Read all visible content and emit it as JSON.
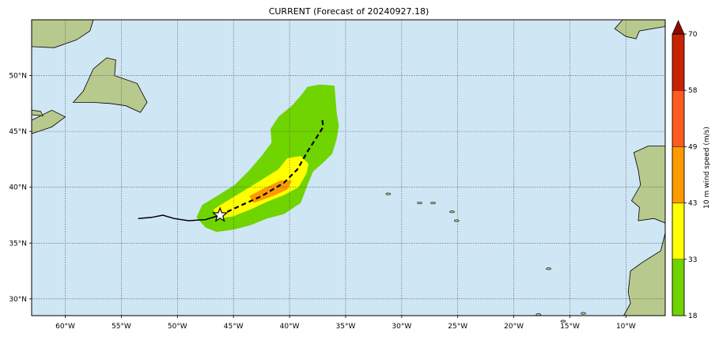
{
  "title": "CURRENT (Forecast of 20240927.18)",
  "map": {
    "lon_range": [
      -63.0,
      -6.5
    ],
    "lat_range": [
      28.5,
      55.0
    ],
    "lon_ticks": [
      -60,
      -55,
      -50,
      -45,
      -40,
      -35,
      -30,
      -25,
      -20,
      -15,
      -10
    ],
    "lat_ticks": [
      30,
      35,
      40,
      45,
      50
    ],
    "lon_tick_labels": [
      "60°W",
      "55°W",
      "50°W",
      "45°W",
      "40°W",
      "35°W",
      "30°W",
      "25°W",
      "20°W",
      "15°W",
      "10°W"
    ],
    "lat_tick_labels": [
      "30°N",
      "35°N",
      "40°N",
      "45°N",
      "50°N"
    ],
    "grid": true,
    "ocean_color": "#cfe6f5"
  },
  "storm": {
    "current_position": {
      "lon": -46.2,
      "lat": 37.5
    },
    "past_track": [
      {
        "lon": -53.5,
        "lat": 37.2
      },
      {
        "lon": -52.3,
        "lat": 37.3
      },
      {
        "lon": -51.3,
        "lat": 37.5
      },
      {
        "lon": -50.3,
        "lat": 37.2
      },
      {
        "lon": -49.0,
        "lat": 37.0
      },
      {
        "lon": -47.5,
        "lat": 37.1
      },
      {
        "lon": -46.2,
        "lat": 37.5
      }
    ],
    "forecast_track": [
      {
        "lon": -46.2,
        "lat": 37.5
      },
      {
        "lon": -44.5,
        "lat": 38.3
      },
      {
        "lon": -42.5,
        "lat": 39.2
      },
      {
        "lon": -40.5,
        "lat": 40.4
      },
      {
        "lon": -39.3,
        "lat": 41.6
      },
      {
        "lon": -38.4,
        "lat": 43.2
      },
      {
        "lon": -37.5,
        "lat": 44.6
      },
      {
        "lon": -37.0,
        "lat": 45.4
      },
      {
        "lon": -37.1,
        "lat": 46.2
      }
    ]
  },
  "colorbar": {
    "label": "10 m wind speed (m/s)",
    "levels": [
      18,
      33,
      43,
      49,
      58,
      70
    ],
    "level_labels": [
      "18",
      "33",
      "43",
      "49",
      "58",
      "70"
    ],
    "colors": [
      "#6fd400",
      "#ffff00",
      "#ff9900",
      "#ff5a1f",
      "#c82200"
    ],
    "extend_color": "#8a0c00"
  }
}
